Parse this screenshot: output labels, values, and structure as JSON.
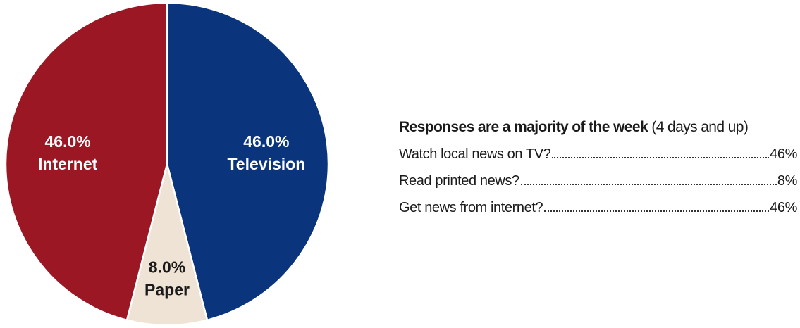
{
  "chart_data": {
    "type": "pie",
    "slices": [
      {
        "label": "Television",
        "value": 46.0,
        "value_label": "46.0%",
        "color": "#0a347b",
        "text_color": "#ffffff"
      },
      {
        "label": "Paper",
        "value": 8.0,
        "value_label": "8.0%",
        "color": "#efe3d6",
        "text_color": "#1a1a1a"
      },
      {
        "label": "Internet",
        "value": 46.0,
        "value_label": "46.0%",
        "color": "#9c1724",
        "text_color": "#ffffff"
      }
    ],
    "start": "12 o'clock",
    "direction": "clockwise",
    "slice_separator_color": "#ffffff"
  },
  "summary": {
    "heading_bold": "Responses are a majority of the week",
    "heading_normal": "(4 days and up)",
    "rows": [
      {
        "question": "Watch local news on TV?",
        "value": "46%"
      },
      {
        "question": "Read printed news?",
        "value": "8%"
      },
      {
        "question": "Get news from internet?",
        "value": "46%"
      }
    ]
  }
}
